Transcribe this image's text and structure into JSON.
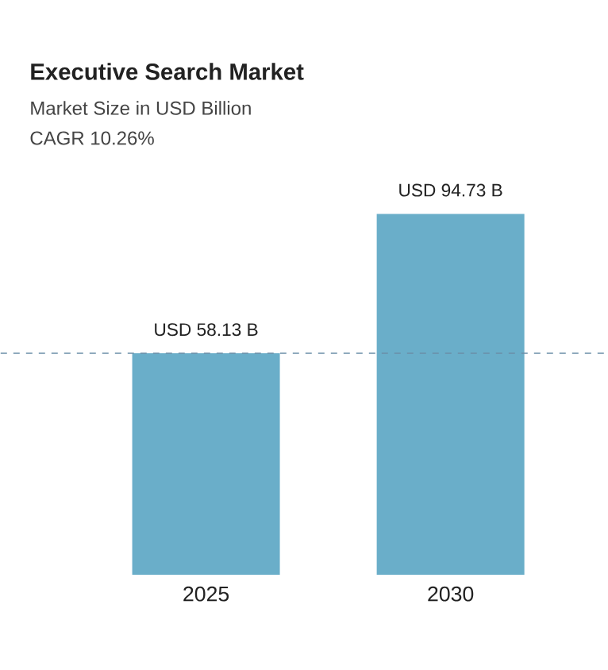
{
  "chart_data": {
    "type": "bar",
    "title": "Executive Search Market",
    "subtitle": "Market Size in USD Billion",
    "annotations": [
      "CAGR 10.26%"
    ],
    "categories": [
      "2025",
      "2030"
    ],
    "values": [
      58.13,
      94.73
    ],
    "value_labels": [
      "USD 58.13 B",
      "USD 94.73 B"
    ],
    "color": "#6aaec9",
    "ref_lines": [
      {
        "axis": "y",
        "value": 58.13,
        "color": "#6b8fa8",
        "line_style": "dashed"
      }
    ]
  }
}
